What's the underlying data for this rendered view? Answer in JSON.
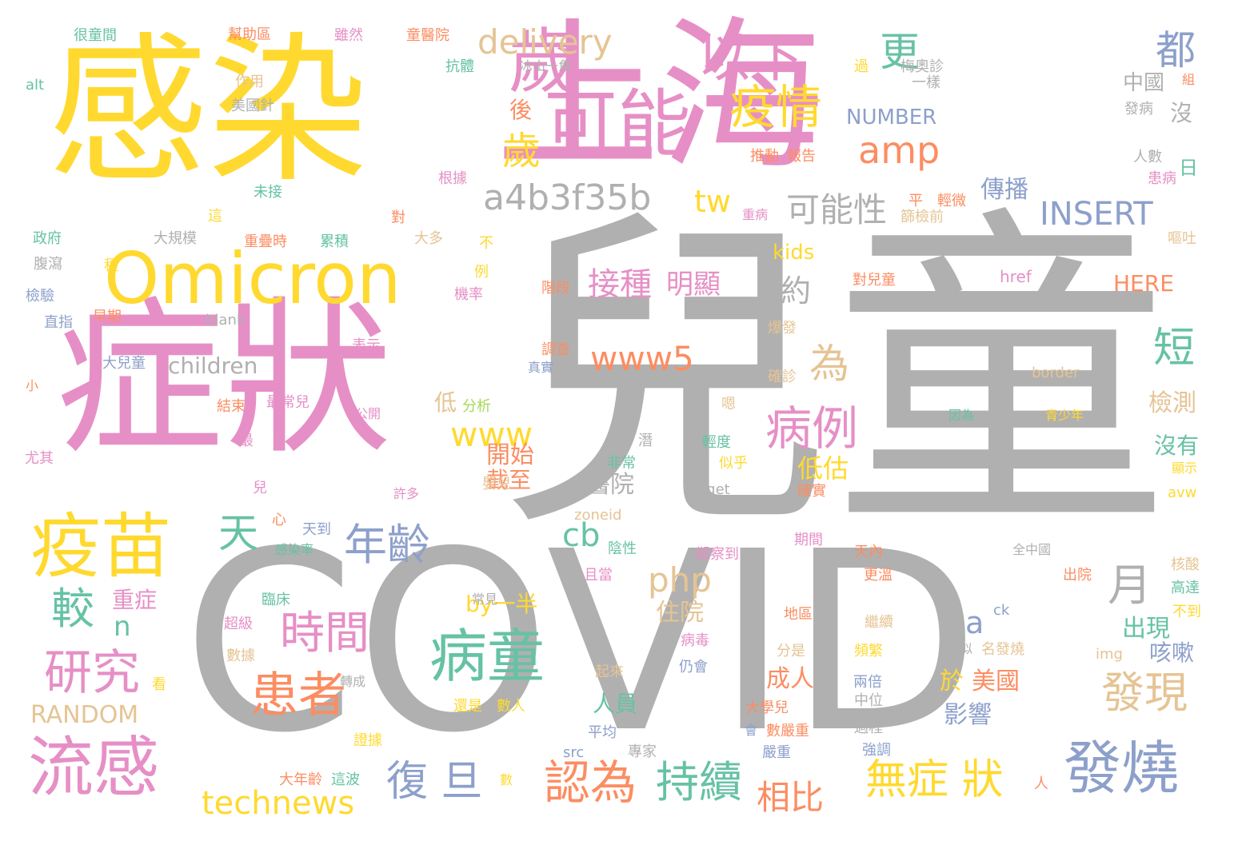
{
  "palette": {
    "gray": "#b0b0b0",
    "pink": "#e68fc6",
    "yellow": "#ffd92f",
    "green": "#66c2a5",
    "orange": "#fc8d62",
    "blue": "#8da0cb",
    "tan": "#e5c494",
    "lime": "#a6d854"
  },
  "words": [
    {
      "text": "兒童",
      "color": "gray"
    },
    {
      "text": "COVID",
      "color": "gray"
    },
    {
      "text": "感染",
      "color": "yellow"
    },
    {
      "text": "上海",
      "color": "pink"
    },
    {
      "text": "症狀",
      "color": "pink"
    },
    {
      "text": "Omicron",
      "color": "yellow"
    },
    {
      "text": "可能",
      "color": "pink"
    },
    {
      "text": "疫苗",
      "color": "yellow"
    },
    {
      "text": "流感",
      "color": "pink"
    },
    {
      "text": "病童",
      "color": "green"
    },
    {
      "text": "發燒",
      "color": "blue"
    },
    {
      "text": "歲",
      "color": "pink"
    },
    {
      "text": "以下",
      "color": "pink"
    },
    {
      "text": "疫情",
      "color": "yellow"
    },
    {
      "text": "更",
      "color": "green"
    },
    {
      "text": "delivery",
      "color": "tan"
    },
    {
      "text": "a4b3f35b",
      "color": "gray"
    },
    {
      "text": "amp",
      "color": "orange"
    },
    {
      "text": "可能性",
      "color": "gray"
    },
    {
      "text": "歲",
      "color": "yellow"
    },
    {
      "text": "都",
      "color": "blue"
    },
    {
      "text": "患者",
      "color": "orange"
    },
    {
      "text": "認為",
      "color": "orange"
    },
    {
      "text": "時間",
      "color": "pink"
    },
    {
      "text": "病例",
      "color": "pink"
    },
    {
      "text": "研究",
      "color": "pink"
    },
    {
      "text": "年齡",
      "color": "blue"
    },
    {
      "text": "持續",
      "color": "green"
    },
    {
      "text": "復 旦",
      "color": "blue"
    },
    {
      "text": "無症 狀",
      "color": "yellow"
    },
    {
      "text": "發現",
      "color": "tan"
    },
    {
      "text": "technews",
      "color": "yellow"
    },
    {
      "text": "相比",
      "color": "orange"
    },
    {
      "text": "天",
      "color": "green"
    },
    {
      "text": "較",
      "color": "green"
    },
    {
      "text": "月",
      "color": "gray"
    },
    {
      "text": "為",
      "color": "tan"
    },
    {
      "text": "短",
      "color": "green"
    },
    {
      "text": "www5",
      "color": "orange"
    },
    {
      "text": "www",
      "color": "yellow"
    },
    {
      "text": "php",
      "color": "tan"
    },
    {
      "text": "cb",
      "color": "green"
    },
    {
      "text": "INSERT",
      "color": "blue"
    },
    {
      "text": "接種",
      "color": "pink"
    },
    {
      "text": "明顯",
      "color": "pink"
    },
    {
      "text": "約",
      "color": "gray"
    },
    {
      "text": "tw",
      "color": "yellow"
    },
    {
      "text": "n",
      "color": "green"
    },
    {
      "text": "a",
      "color": "blue"
    },
    {
      "text": "ck",
      "color": "blue"
    },
    {
      "text": "RANDOM",
      "color": "tan"
    },
    {
      "text": "children",
      "color": "gray"
    },
    {
      "text": "重症",
      "color": "pink"
    },
    {
      "text": "by一半",
      "color": "yellow"
    },
    {
      "text": "出現",
      "color": "green"
    },
    {
      "text": "咳嗽",
      "color": "blue"
    },
    {
      "text": "低估",
      "color": "yellow"
    },
    {
      "text": "醫院",
      "color": "gray"
    },
    {
      "text": "成人",
      "color": "orange"
    },
    {
      "text": "美國",
      "color": "orange"
    },
    {
      "text": "影響",
      "color": "blue"
    },
    {
      "text": "於",
      "color": "yellow"
    },
    {
      "text": "人員",
      "color": "green"
    },
    {
      "text": "住院",
      "color": "tan"
    },
    {
      "text": "開始",
      "color": "orange"
    },
    {
      "text": "截至",
      "color": "orange"
    },
    {
      "text": "低",
      "color": "tan"
    },
    {
      "text": "檢測",
      "color": "tan"
    },
    {
      "text": "沒有",
      "color": "green"
    },
    {
      "text": "傳播",
      "color": "blue"
    },
    {
      "text": "中國",
      "color": "gray"
    },
    {
      "text": "沒",
      "color": "gray"
    },
    {
      "text": "日",
      "color": "green"
    },
    {
      "text": "NUMBER",
      "color": "blue"
    },
    {
      "text": "後",
      "color": "orange"
    },
    {
      "text": "kids",
      "color": "yellow"
    },
    {
      "text": "HERE",
      "color": "orange"
    },
    {
      "text": "href",
      "color": "pink"
    },
    {
      "text": "border",
      "color": "tan"
    },
    {
      "text": "blank",
      "color": "gray"
    },
    {
      "text": "target",
      "color": "gray"
    },
    {
      "text": "zoneid",
      "color": "tan"
    },
    {
      "text": "avw",
      "color": "yellow"
    },
    {
      "text": "img",
      "color": "tan"
    },
    {
      "text": "src",
      "color": "blue"
    },
    {
      "text": "alt",
      "color": "green"
    },
    {
      "text": "很童間",
      "color": "green"
    },
    {
      "text": "幫助區",
      "color": "orange"
    },
    {
      "text": "雖然",
      "color": "pink"
    },
    {
      "text": "童醫院",
      "color": "orange"
    },
    {
      "text": "抗體",
      "color": "green"
    },
    {
      "text": "冰山一角",
      "color": "gray"
    },
    {
      "text": "作用",
      "color": "tan"
    },
    {
      "text": "美國針",
      "color": "gray"
    },
    {
      "text": "過",
      "color": "yellow"
    },
    {
      "text": "梅奧診",
      "color": "gray"
    },
    {
      "text": "組",
      "color": "orange"
    },
    {
      "text": "一樣",
      "color": "gray"
    },
    {
      "text": "發病",
      "color": "gray"
    },
    {
      "text": "推動",
      "color": "orange"
    },
    {
      "text": "報告",
      "color": "orange"
    },
    {
      "text": "人數",
      "color": "gray"
    },
    {
      "text": "患病",
      "color": "pink"
    },
    {
      "text": "未接",
      "color": "green"
    },
    {
      "text": "根據",
      "color": "pink"
    },
    {
      "text": "平",
      "color": "orange"
    },
    {
      "text": "輕微",
      "color": "orange"
    },
    {
      "text": "重病",
      "color": "pink"
    },
    {
      "text": "篩檢前",
      "color": "tan"
    },
    {
      "text": "這",
      "color": "yellow"
    },
    {
      "text": "對",
      "color": "orange"
    },
    {
      "text": "政府",
      "color": "green"
    },
    {
      "text": "大規模",
      "color": "gray"
    },
    {
      "text": "重疊時",
      "color": "orange"
    },
    {
      "text": "累積",
      "color": "green"
    },
    {
      "text": "大多",
      "color": "tan"
    },
    {
      "text": "不",
      "color": "yellow"
    },
    {
      "text": "嘔吐",
      "color": "tan"
    },
    {
      "text": "腹瀉",
      "color": "gray"
    },
    {
      "text": "種",
      "color": "yellow"
    },
    {
      "text": "例",
      "color": "yellow"
    },
    {
      "text": "階段",
      "color": "orange"
    },
    {
      "text": "對兒童",
      "color": "orange"
    },
    {
      "text": "檢驗",
      "color": "blue"
    },
    {
      "text": "機率",
      "color": "pink"
    },
    {
      "text": "直指",
      "color": "blue"
    },
    {
      "text": "早期",
      "color": "orange"
    },
    {
      "text": "表示",
      "color": "pink"
    },
    {
      "text": "爆發",
      "color": "tan"
    },
    {
      "text": "調查",
      "color": "orange"
    },
    {
      "text": "真實",
      "color": "blue"
    },
    {
      "text": "大兒童",
      "color": "blue"
    },
    {
      "text": "確診",
      "color": "tan"
    },
    {
      "text": "小",
      "color": "orange"
    },
    {
      "text": "結束",
      "color": "orange"
    },
    {
      "text": "最常兒",
      "color": "pink"
    },
    {
      "text": "分析",
      "color": "lime"
    },
    {
      "text": "公開",
      "color": "pink"
    },
    {
      "text": "嗯",
      "color": "tan"
    },
    {
      "text": "因為",
      "color": "green"
    },
    {
      "text": "青少年",
      "color": "yellow"
    },
    {
      "text": "最",
      "color": "pink"
    },
    {
      "text": "潛",
      "color": "gray"
    },
    {
      "text": "非常",
      "color": "green"
    },
    {
      "text": "輕度",
      "color": "green"
    },
    {
      "text": "似乎",
      "color": "yellow"
    },
    {
      "text": "顯示",
      "color": "yellow"
    },
    {
      "text": "尤其",
      "color": "pink"
    },
    {
      "text": "兒",
      "color": "pink"
    },
    {
      "text": "許多",
      "color": "pink"
    },
    {
      "text": "嬰兒",
      "color": "tan"
    },
    {
      "text": "確實",
      "color": "orange"
    },
    {
      "text": "心",
      "color": "orange"
    },
    {
      "text": "天到",
      "color": "blue"
    },
    {
      "text": "感染率",
      "color": "green"
    },
    {
      "text": "陰性",
      "color": "green"
    },
    {
      "text": "期間",
      "color": "pink"
    },
    {
      "text": "觀察到",
      "color": "pink"
    },
    {
      "text": "天內",
      "color": "orange"
    },
    {
      "text": "全中國",
      "color": "gray"
    },
    {
      "text": "核酸",
      "color": "tan"
    },
    {
      "text": "且當",
      "color": "pink"
    },
    {
      "text": "更溫",
      "color": "orange"
    },
    {
      "text": "出院",
      "color": "orange"
    },
    {
      "text": "高達",
      "color": "green"
    },
    {
      "text": "臨床",
      "color": "green"
    },
    {
      "text": "常見",
      "color": "gray"
    },
    {
      "text": "不到",
      "color": "yellow"
    },
    {
      "text": "超級",
      "color": "pink"
    },
    {
      "text": "地區",
      "color": "orange"
    },
    {
      "text": "繼續",
      "color": "tan"
    },
    {
      "text": "病毒",
      "color": "pink"
    },
    {
      "text": "數據",
      "color": "tan"
    },
    {
      "text": "看",
      "color": "yellow"
    },
    {
      "text": "轉成",
      "color": "gray"
    },
    {
      "text": "分是",
      "color": "tan"
    },
    {
      "text": "頻繁",
      "color": "yellow"
    },
    {
      "text": "相似",
      "color": "gray"
    },
    {
      "text": "名發燒",
      "color": "tan"
    },
    {
      "text": "起來",
      "color": "tan"
    },
    {
      "text": "仍會",
      "color": "blue"
    },
    {
      "text": "兩倍",
      "color": "blue"
    },
    {
      "text": "中位",
      "color": "gray"
    },
    {
      "text": "還是",
      "color": "yellow"
    },
    {
      "text": "數人",
      "color": "yellow"
    },
    {
      "text": "大學兒",
      "color": "orange"
    },
    {
      "text": "過程",
      "color": "gray"
    },
    {
      "text": "平均",
      "color": "blue"
    },
    {
      "text": "會",
      "color": "blue"
    },
    {
      "text": "數嚴重",
      "color": "orange"
    },
    {
      "text": "證據",
      "color": "yellow"
    },
    {
      "text": "專家",
      "color": "gray"
    },
    {
      "text": "嚴重",
      "color": "blue"
    },
    {
      "text": "強調",
      "color": "blue"
    },
    {
      "text": "大年齡",
      "color": "orange"
    },
    {
      "text": "這波",
      "color": "green"
    },
    {
      "text": "數",
      "color": "yellow"
    },
    {
      "text": "人",
      "color": "orange"
    }
  ]
}
